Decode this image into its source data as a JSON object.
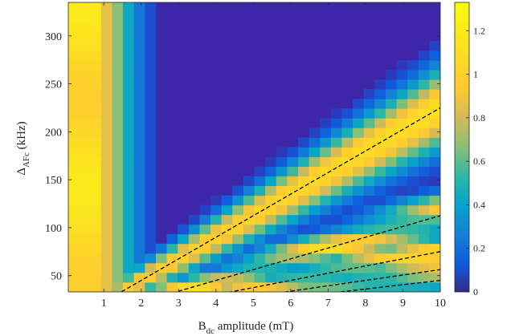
{
  "chart_data": {
    "type": "heatmap",
    "title": "",
    "xlabel": {
      "main": "B",
      "sub": "dc",
      "rest": " amplitude (mT)"
    },
    "ylabel": {
      "main": "Δ",
      "sub": "AFc",
      "rest": " (kHz)"
    },
    "xlim": [
      0.05,
      10
    ],
    "ylim": [
      33,
      335
    ],
    "xticks": [
      1,
      2,
      3,
      4,
      5,
      6,
      7,
      8,
      9,
      10
    ],
    "yticks": [
      50,
      100,
      150,
      200,
      250,
      300
    ],
    "colorbar": {
      "ticks": [
        0,
        0.2,
        0.4,
        0.6,
        0.8,
        1,
        1.2
      ],
      "min": 0,
      "max": 1.33,
      "colormap": "parula"
    },
    "grid": {
      "nx": 34,
      "ny": 30
    },
    "dashed_lines": [
      {
        "x0": 1.33,
        "x1": 10,
        "slope_khz_per_mT": 22.5
      },
      {
        "x0": 2.66,
        "x1": 10,
        "slope_khz_per_mT": 11.25
      },
      {
        "x0": 3.99,
        "x1": 10,
        "slope_khz_per_mT": 7.5
      },
      {
        "x0": 5.32,
        "x1": 10,
        "slope_khz_per_mT": 5.625
      },
      {
        "x0": 6.65,
        "x1": 10,
        "slope_khz_per_mT": 4.5
      }
    ],
    "colors": {
      "background": "#3e26a8",
      "line": "#000000"
    }
  }
}
